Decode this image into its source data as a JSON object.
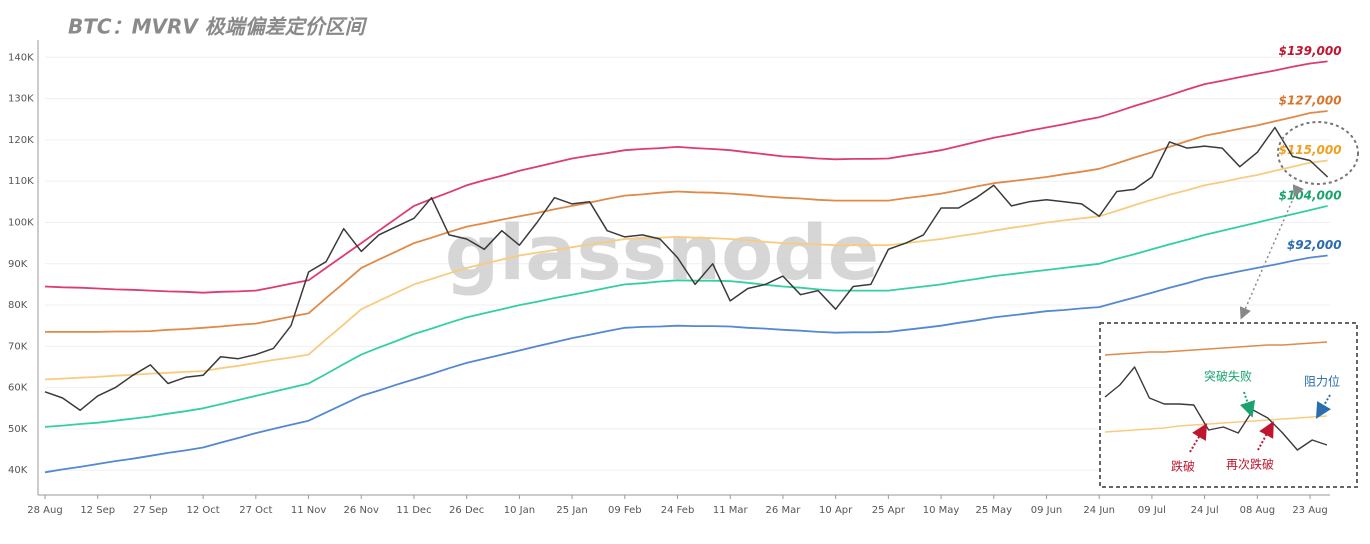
{
  "chart_data": [
    {
      "type": "line",
      "title": "BTC：MVRV 极端偏差定价区间",
      "watermark": "glassnode",
      "categories": [
        "28 Aug",
        null,
        null,
        "12 Sep",
        null,
        null,
        "27 Sep",
        null,
        null,
        "12 Oct",
        null,
        null,
        "27 Oct",
        null,
        null,
        "11 Nov",
        null,
        null,
        "26 Nov",
        null,
        null,
        "11 Dec",
        null,
        null,
        "26 Dec",
        null,
        null,
        "10 Jan",
        null,
        null,
        "25 Jan",
        null,
        null,
        "09 Feb",
        null,
        null,
        "24 Feb",
        null,
        null,
        "11 Mar",
        null,
        null,
        "26 Mar",
        null,
        null,
        "10 Apr",
        null,
        null,
        "25 Apr",
        null,
        null,
        "10 May",
        null,
        null,
        "25 May",
        null,
        null,
        "09 Jun",
        null,
        null,
        "24 Jun",
        null,
        null,
        "09 Jul",
        null,
        null,
        "24 Jul",
        null,
        null,
        "08 Aug",
        null,
        null,
        "23 Aug",
        null
      ],
      "ylim": [
        34000,
        150000
      ],
      "yticks": [
        {
          "value": 40000,
          "label": "40K"
        },
        {
          "value": 50000,
          "label": "50K"
        },
        {
          "value": 60000,
          "label": "60K"
        },
        {
          "value": 70000,
          "label": "70K"
        },
        {
          "value": 80000,
          "label": "80K"
        },
        {
          "value": 90000,
          "label": "90K"
        },
        {
          "value": 100000,
          "label": "100K"
        },
        {
          "value": 110000,
          "label": "110K"
        },
        {
          "value": 120000,
          "label": "120K"
        },
        {
          "value": 130000,
          "label": "130K"
        },
        {
          "value": 140000,
          "label": "140K"
        }
      ],
      "grid": true,
      "series": [
        {
          "name": "$139,000",
          "color": "#dc3d6e",
          "label_color": "#c0152f",
          "values": [
            84500,
            84300,
            84200,
            84000,
            83800,
            83700,
            83500,
            83300,
            83200,
            83000,
            83200,
            83300,
            83500,
            84300,
            85200,
            86000,
            89000,
            92000,
            95000,
            98000,
            101000,
            104000,
            105700,
            107300,
            109000,
            110200,
            111300,
            112500,
            113500,
            114500,
            115500,
            116200,
            116800,
            117500,
            117800,
            118000,
            118300,
            118000,
            117800,
            117500,
            117000,
            116500,
            116000,
            115800,
            115500,
            115300,
            115400,
            115400,
            115500,
            116200,
            116800,
            117500,
            118500,
            119500,
            120500,
            121300,
            122200,
            123000,
            123800,
            124700,
            125500,
            126800,
            128200,
            129500,
            130800,
            132200,
            133500,
            134300,
            135200,
            136000,
            136800,
            137700,
            138500,
            139000
          ]
        },
        {
          "name": "$127,000",
          "color": "#e08a4a",
          "label_color": "#d9742c",
          "values": [
            73500,
            73500,
            73500,
            73500,
            73600,
            73600,
            73700,
            74000,
            74200,
            74500,
            74800,
            75200,
            75500,
            76300,
            77200,
            78000,
            81700,
            85300,
            89000,
            91000,
            93000,
            95000,
            96300,
            97700,
            99000,
            99800,
            100700,
            101500,
            102300,
            103200,
            104000,
            104800,
            105700,
            106500,
            106800,
            107200,
            107500,
            107300,
            107200,
            107000,
            106700,
            106300,
            106000,
            105800,
            105500,
            105300,
            105300,
            105300,
            105300,
            105900,
            106400,
            107000,
            107800,
            108700,
            109500,
            110000,
            110500,
            111000,
            111700,
            112300,
            113000,
            114300,
            115700,
            117000,
            118300,
            119700,
            121000,
            121800,
            122700,
            123500,
            124500,
            125500,
            126500,
            127000
          ]
        },
        {
          "name": "$115,000",
          "color": "#f8cc80",
          "label_color": "#f0a020",
          "values": [
            62000,
            62200,
            62400,
            62600,
            62900,
            63100,
            63400,
            63600,
            63800,
            64000,
            64700,
            65300,
            66000,
            66700,
            67300,
            68000,
            71700,
            75300,
            79000,
            81000,
            83000,
            85000,
            86300,
            87700,
            89000,
            90000,
            91000,
            92000,
            92700,
            93300,
            94000,
            94700,
            95300,
            96000,
            96200,
            96300,
            96500,
            96300,
            96200,
            96000,
            95700,
            95300,
            95000,
            94800,
            94700,
            94500,
            94500,
            94500,
            94500,
            95000,
            95500,
            96000,
            96700,
            97300,
            98000,
            98700,
            99300,
            100000,
            100500,
            101000,
            101500,
            102800,
            104200,
            105500,
            106700,
            107800,
            109000,
            109800,
            110700,
            111500,
            112500,
            113500,
            114500,
            115000
          ]
        },
        {
          "name": "$104,000",
          "color": "#33cfa3",
          "label_color": "#1aa36f",
          "values": [
            50500,
            50800,
            51200,
            51500,
            52000,
            52500,
            53000,
            53700,
            54300,
            55000,
            56000,
            57000,
            58000,
            59000,
            60000,
            61000,
            63300,
            65700,
            68000,
            69700,
            71300,
            73000,
            74300,
            75700,
            77000,
            78000,
            79000,
            80000,
            80800,
            81700,
            82500,
            83300,
            84200,
            85000,
            85300,
            85700,
            86000,
            85900,
            85900,
            85800,
            85400,
            84900,
            84500,
            84200,
            83800,
            83500,
            83500,
            83500,
            83500,
            84000,
            84500,
            85000,
            85700,
            86300,
            87000,
            87500,
            88000,
            88500,
            89000,
            89500,
            90000,
            91200,
            92300,
            93500,
            94700,
            95800,
            97000,
            98000,
            99000,
            100000,
            101000,
            102000,
            103000,
            104000
          ]
        },
        {
          "name": "$92,000",
          "color": "#5389d1",
          "label_color": "#2a6db0",
          "values": [
            39500,
            40200,
            40800,
            41500,
            42200,
            42800,
            43500,
            44200,
            44800,
            45500,
            46700,
            47800,
            49000,
            50000,
            51000,
            52000,
            54000,
            56000,
            58000,
            59300,
            60700,
            62000,
            63300,
            64700,
            66000,
            67000,
            68000,
            69000,
            70000,
            71000,
            72000,
            72800,
            73700,
            74500,
            74700,
            74800,
            75000,
            74900,
            74900,
            74800,
            74500,
            74300,
            74000,
            73800,
            73500,
            73300,
            73400,
            73400,
            73500,
            74000,
            74500,
            75000,
            75700,
            76300,
            77000,
            77500,
            78000,
            78500,
            78800,
            79200,
            79500,
            80700,
            81800,
            83000,
            84200,
            85300,
            86500,
            87300,
            88200,
            89000,
            89800,
            90700,
            91500,
            92000
          ]
        },
        {
          "color": "#3a3a3a",
          "values": [
            59000,
            57500,
            54500,
            58000,
            60000,
            63000,
            65500,
            61000,
            62500,
            63000,
            67500,
            67000,
            68000,
            69500,
            75000,
            88000,
            90500,
            98500,
            93000,
            97000,
            99000,
            101000,
            106000,
            97000,
            96000,
            93500,
            98000,
            94500,
            100000,
            106000,
            104500,
            105000,
            98000,
            96500,
            97000,
            96000,
            91500,
            85000,
            90000,
            81000,
            84000,
            85000,
            87000,
            82500,
            83500,
            79000,
            84500,
            85000,
            93500,
            95000,
            97000,
            103500,
            103500,
            106000,
            109000,
            104000,
            105000,
            105500,
            105000,
            104500,
            101500,
            107500,
            108000,
            111000,
            119500,
            118000,
            118500,
            118000,
            113500,
            117000,
            123000,
            116000,
            115000,
            111000
          ]
        }
      ]
    },
    {
      "type": "line",
      "ylim": [
        110800,
        127200
      ],
      "series": [
        {
          "color": "#e08a4a",
          "values": [
            124000,
            124100,
            124200,
            124300,
            124300,
            124400,
            124500,
            124600,
            124700,
            124800,
            124900,
            125000,
            125000,
            125100,
            125200,
            125300
          ]
        },
        {
          "color": "#f8cc80",
          "values": [
            116300,
            116400,
            116500,
            116600,
            116700,
            116900,
            117000,
            117100,
            117200,
            117300,
            117400,
            117500,
            117600,
            117700,
            117800,
            117900
          ]
        },
        {
          "color": "#3a3a3a",
          "values": [
            119800,
            121000,
            122800,
            119700,
            119100,
            119100,
            119000,
            116500,
            116800,
            116200,
            118500,
            117700,
            116200,
            114500,
            115500,
            115000
          ]
        }
      ],
      "annotations": [
        {
          "text": "突破失败",
          "color": "#1aa36f"
        },
        {
          "text": "阻力位",
          "color": "#2a6db0"
        },
        {
          "text": "跌破",
          "color": "#c0152f"
        },
        {
          "text": "再次跌破",
          "color": "#c0152f"
        }
      ]
    }
  ]
}
